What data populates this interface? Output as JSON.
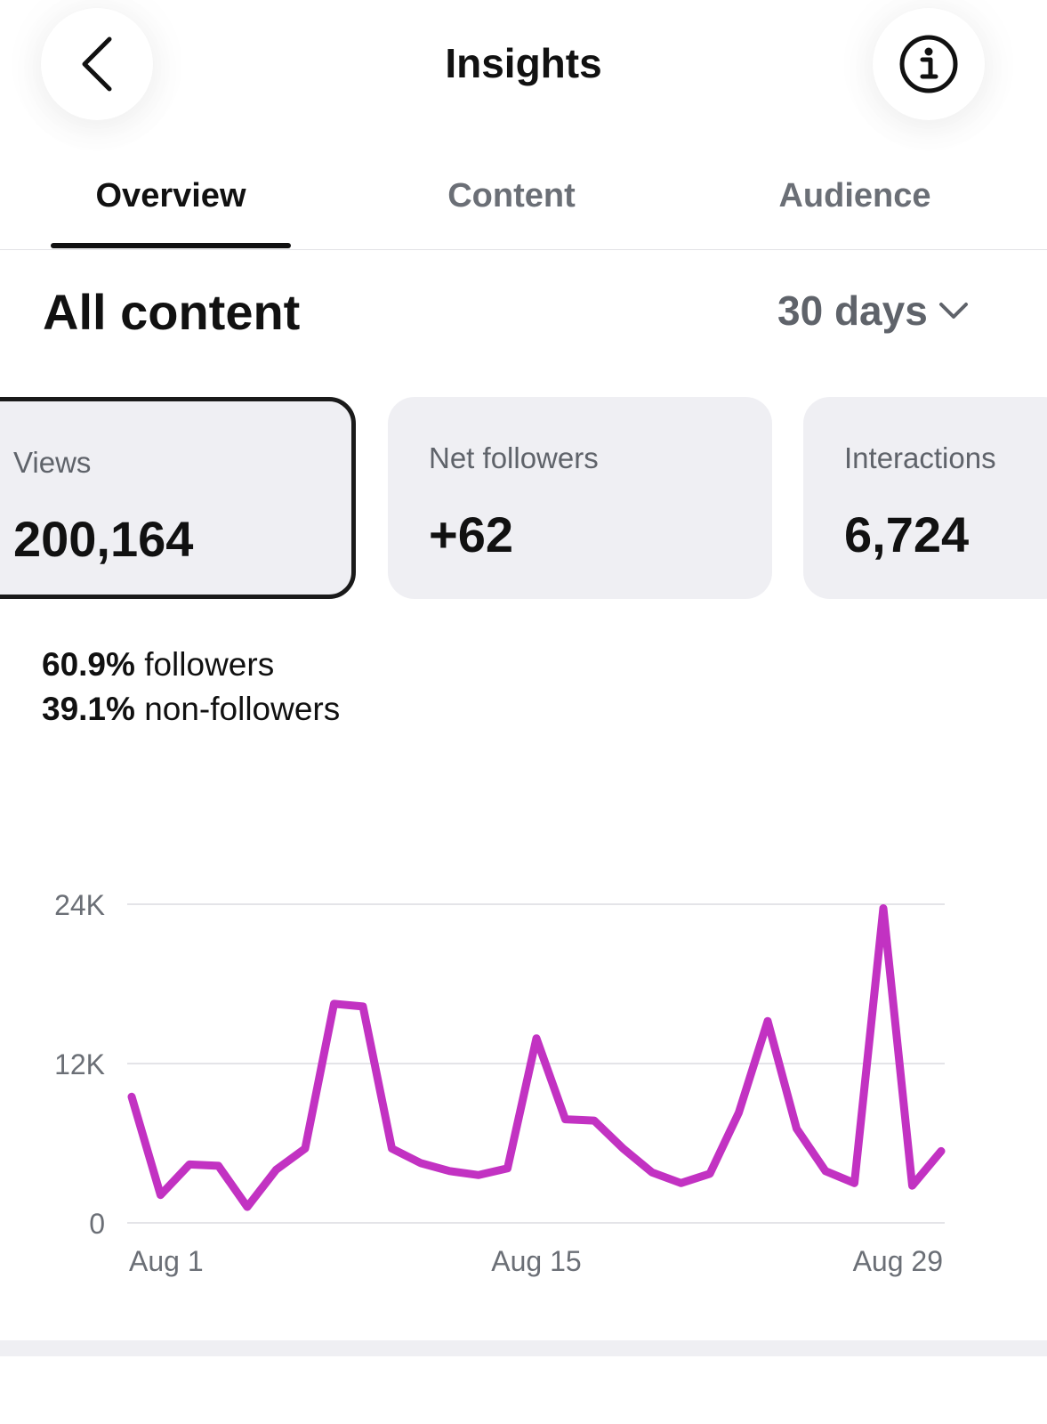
{
  "header": {
    "title": "Insights",
    "back_icon": "chevron-left-icon",
    "info_icon": "info-icon"
  },
  "tabs": [
    {
      "label": "Overview",
      "active": true
    },
    {
      "label": "Content",
      "active": false
    },
    {
      "label": "Audience",
      "active": false
    }
  ],
  "section": {
    "title": "All content",
    "range": "30 days"
  },
  "metrics": [
    {
      "label": "Views",
      "value": "200,164",
      "selected": true
    },
    {
      "label": "Net followers",
      "value": "+62",
      "selected": false
    },
    {
      "label": "Interactions",
      "value": "6,724",
      "selected": false
    }
  ],
  "breakdown": {
    "followers_pct": "60.9%",
    "followers_label": "followers",
    "non_followers_pct": "39.1%",
    "non_followers_label": "non-followers"
  },
  "colors": {
    "line": "#c232c2",
    "grid": "#e4e4e8",
    "axis_text": "#6b6f76"
  },
  "chart_data": {
    "type": "line",
    "title": "",
    "xlabel": "",
    "ylabel": "",
    "ylim": [
      0,
      24000
    ],
    "yticks": [
      0,
      12000,
      24000
    ],
    "ytick_labels": [
      "0",
      "12K",
      "24K"
    ],
    "xtick_labels": [
      "Aug 1",
      "Aug 15",
      "Aug 29"
    ],
    "xtick_positions": [
      1,
      15,
      29
    ],
    "grid": true,
    "series": [
      {
        "values": [
          9500,
          2100,
          4400,
          4300,
          1200,
          4000,
          5600,
          16500,
          16300,
          5600,
          4500,
          3900,
          3600,
          4100,
          13900,
          7800,
          7700,
          5600,
          3800,
          3000,
          3700,
          8300,
          15200,
          7100,
          3900,
          3000,
          23700,
          2800,
          5400
        ]
      }
    ]
  }
}
